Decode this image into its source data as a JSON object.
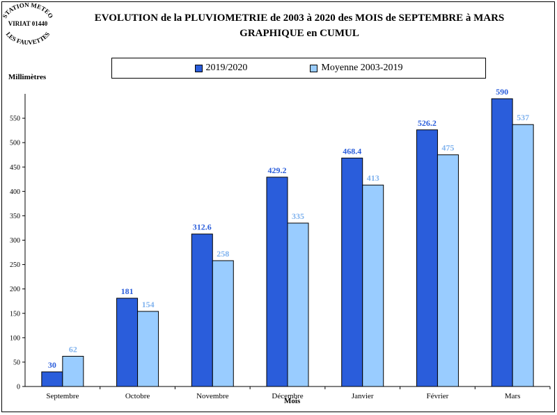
{
  "stamp": {
    "line1": "STATION METEO",
    "line2": "VIRIAT 01440",
    "line3": "LES FAUVETTES"
  },
  "title_line1": "EVOLUTION de la PLUVIOMETRIE de 2003 à 2020 des MOIS de SEPTEMBRE à MARS",
  "title_line2": "GRAPHIQUE en CUMUL",
  "colors": {
    "series1": "#2a5ddb",
    "series1_label": "#2a5ddb",
    "series2": "#99ccff",
    "series2_label": "#7fb2ee"
  },
  "chart_data": {
    "type": "bar",
    "title": "EVOLUTION de la PLUVIOMETRIE de 2003 à 2020 des MOIS de SEPTEMBRE à MARS",
    "subtitle": "GRAPHIQUE en CUMUL",
    "xlabel": "Mois",
    "ylabel": "Millimètres",
    "ylim": [
      0,
      600
    ],
    "yticks": [
      0,
      50,
      100,
      150,
      200,
      250,
      300,
      350,
      400,
      450,
      500,
      550
    ],
    "grid": false,
    "legend_position": "top",
    "categories": [
      "Septembre",
      "Octobre",
      "Novembre",
      "Décembre",
      "Janvier",
      "Février",
      "Mars"
    ],
    "series": [
      {
        "name": "2019/2020",
        "values": [
          30,
          181,
          312.6,
          429.2,
          468.4,
          526.2,
          590
        ],
        "labels": [
          "30",
          "181",
          "312.6",
          "429.2",
          "468.4",
          "526.2",
          "590"
        ]
      },
      {
        "name": "Moyenne 2003-2019",
        "values": [
          62,
          154,
          258,
          335,
          413,
          475,
          537
        ],
        "labels": [
          "62",
          "154",
          "258",
          "335",
          "413",
          "475",
          "537"
        ]
      }
    ]
  }
}
